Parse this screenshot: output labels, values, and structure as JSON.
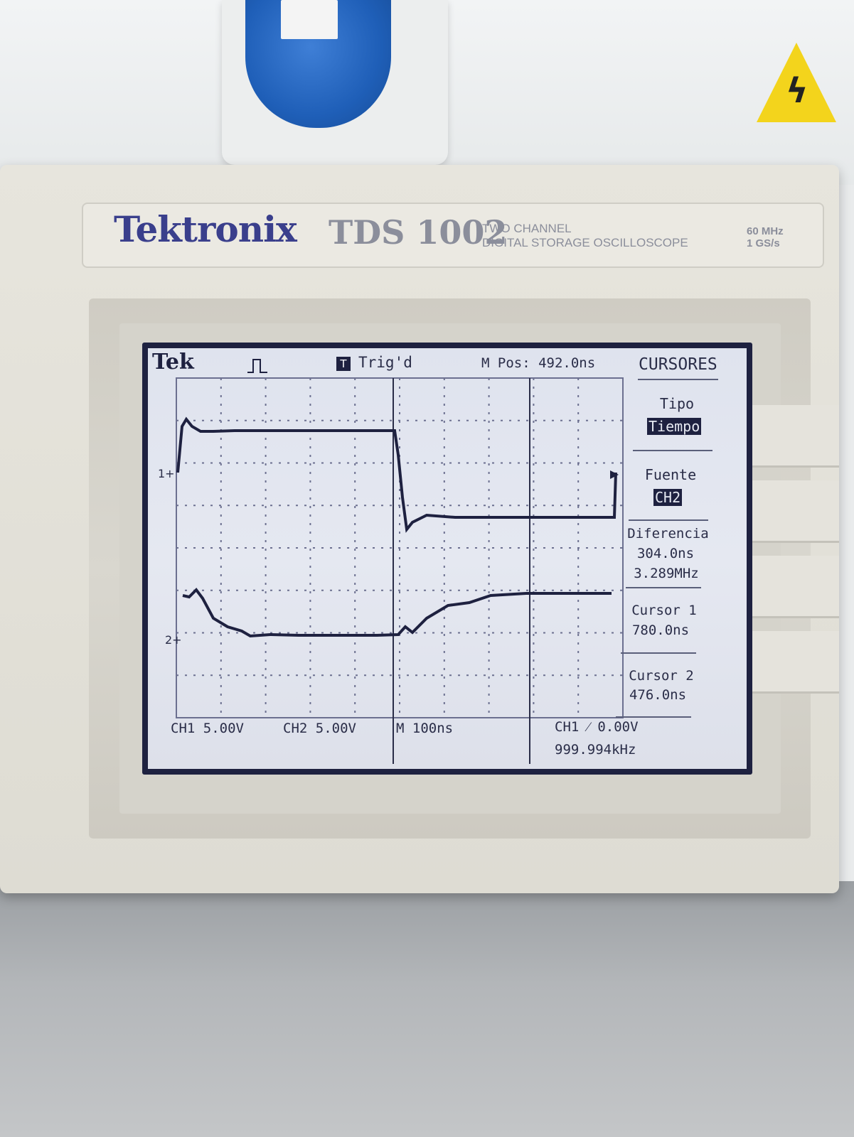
{
  "instrument": {
    "brand": "Tektronix",
    "model": "TDS 1002",
    "description_line1": "TWO CHANNEL",
    "description_line2": "DIGITAL STORAGE OSCILLOSCOPE",
    "spec_line1": "60 MHz",
    "spec_line2": "1 GS/s"
  },
  "screen": {
    "logo": "Tek",
    "trigger_status": "Trig'd",
    "trigger_icon": "T",
    "main_position": "M Pos: 492.0ns",
    "ch1_marker": "1",
    "ch2_marker": "2",
    "ch1_scale": "CH1  5.00V",
    "ch2_scale": "CH2  5.00V",
    "timebase": "M 100ns",
    "trigger_setting": "CH1 ⁄ 0.00V",
    "frequency": "999.994kHz",
    "menu": {
      "title": "CURSORES",
      "tipo_label": "Tipo",
      "tipo_value": "Tiempo",
      "fuente_label": "Fuente",
      "fuente_value": "CH2",
      "diferencia_label": "Diferencia",
      "diferencia_time": "304.0ns",
      "diferencia_freq": "3.289MHz",
      "cursor1_label": "Cursor 1",
      "cursor1_value": "780.0ns",
      "cursor2_label": "Cursor 2",
      "cursor2_value": "476.0ns"
    }
  },
  "colors": {
    "trace": "#1e2140",
    "screen_background": "#e2e5ef",
    "brand_blue": "#3a3f8c",
    "warning_yellow": "#f3d41c",
    "socket_blue": "#1f5fb8"
  }
}
